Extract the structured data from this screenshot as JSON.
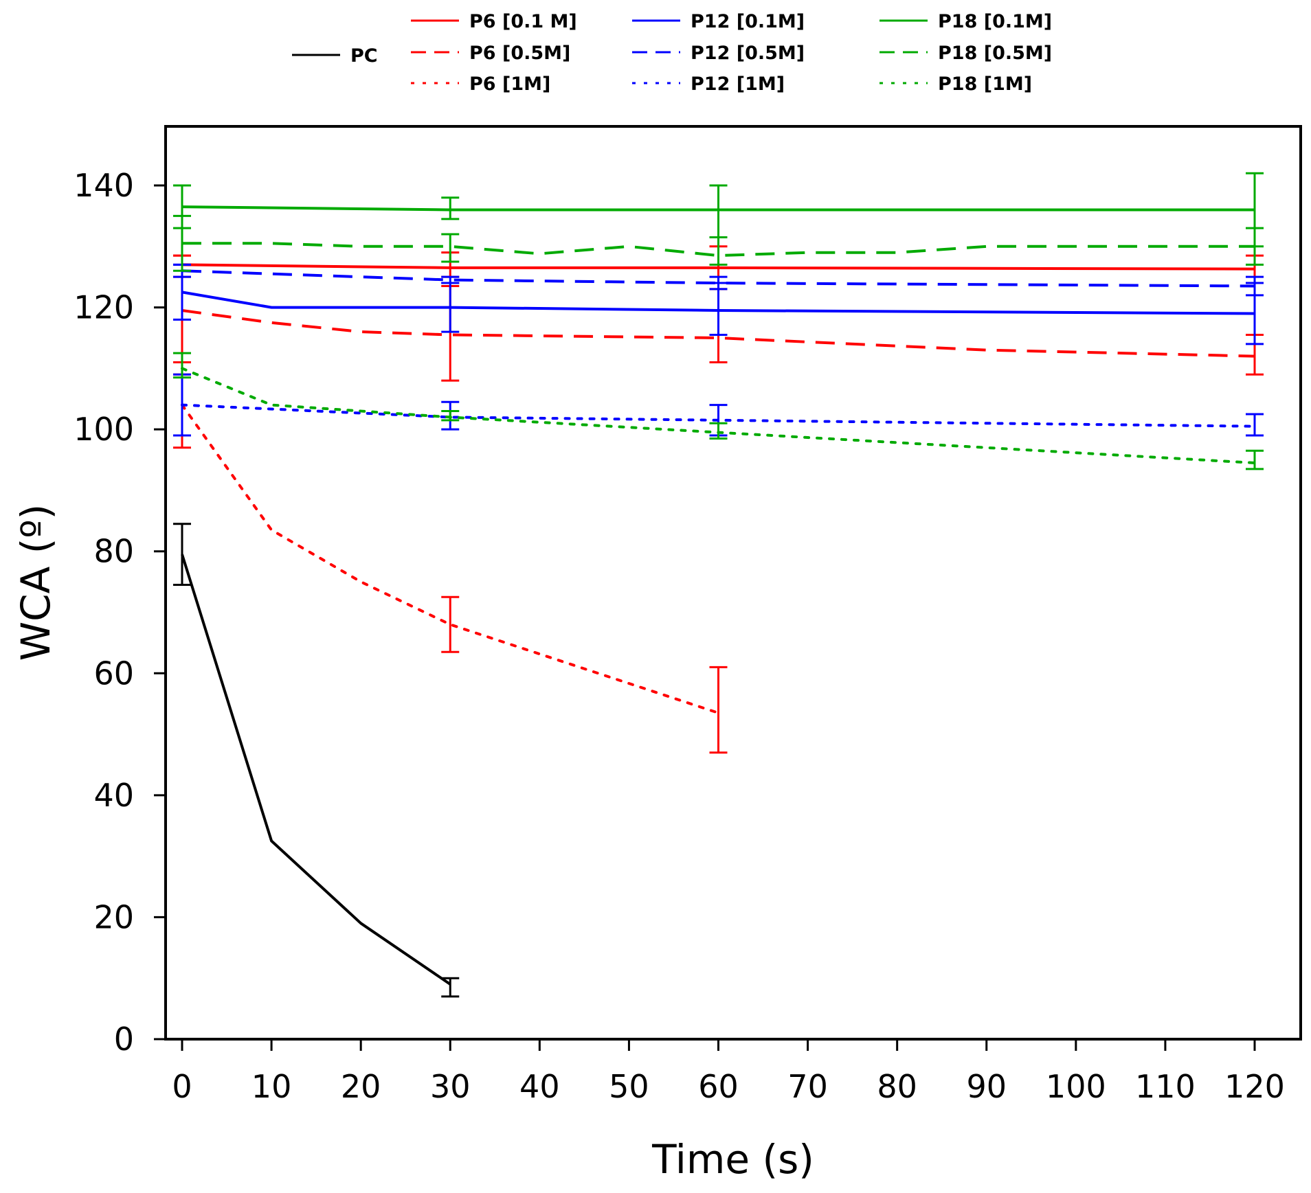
{
  "chart_data": {
    "type": "line",
    "title": "",
    "xlabel": "Time (s)",
    "ylabel": "WCA (º)",
    "xlim": [
      -2,
      125
    ],
    "ylim": [
      0,
      150
    ],
    "xticks": [
      0,
      10,
      20,
      30,
      40,
      50,
      60,
      70,
      80,
      90,
      100,
      110,
      120
    ],
    "yticks": [
      0,
      20,
      40,
      60,
      80,
      100,
      120,
      140
    ],
    "xtick_labels": [
      "0",
      "10",
      "20",
      "30",
      "40",
      "50",
      "60",
      "70",
      "80",
      "90",
      "100",
      "110",
      "120"
    ],
    "ytick_labels": [
      "0",
      "20",
      "40",
      "60",
      "80",
      "100",
      "120",
      "140"
    ],
    "grid": false,
    "legend_position": "top",
    "series": [
      {
        "name": "PC",
        "color": "#000000",
        "dash": "solid",
        "x": [
          0,
          10,
          20,
          30
        ],
        "y": [
          79.5,
          32.5,
          19,
          9
        ],
        "err_x": [
          0,
          30
        ],
        "err_lo": [
          74.5,
          7
        ],
        "err_hi": [
          84.5,
          10
        ]
      },
      {
        "name": "P6 [0.1 M]",
        "color": "#ff0000",
        "dash": "solid",
        "x": [
          0,
          30,
          60,
          120
        ],
        "y": [
          127,
          126.5,
          126.5,
          126.3
        ],
        "err_x": [
          0,
          30,
          60,
          120
        ],
        "err_lo": [
          125,
          125,
          123,
          124
        ],
        "err_hi": [
          128.5,
          129,
          130,
          128.5
        ]
      },
      {
        "name": "P6 [0.5M]",
        "color": "#ff0000",
        "dash": "dashed",
        "x": [
          0,
          10,
          20,
          30,
          60,
          90,
          120
        ],
        "y": [
          119.5,
          117.5,
          116,
          115.5,
          115,
          113,
          112
        ],
        "err_x": [
          0,
          30,
          60,
          120
        ],
        "err_lo": [
          109,
          108,
          111,
          109
        ],
        "err_hi": [
          128.5,
          123.5,
          119.5,
          115.5
        ]
      },
      {
        "name": "P6 [1M]",
        "color": "#ff0000",
        "dash": "dotted",
        "x": [
          0,
          10,
          20,
          30,
          60
        ],
        "y": [
          104,
          83.5,
          75,
          68,
          53.5
        ],
        "err_x": [
          0,
          30,
          60
        ],
        "err_lo": [
          97,
          63.5,
          47
        ],
        "err_hi": [
          111,
          72.5,
          61
        ]
      },
      {
        "name": "P12 [0.1M]",
        "color": "#0000ff",
        "dash": "solid",
        "x": [
          0,
          10,
          30,
          60,
          120
        ],
        "y": [
          122.5,
          120,
          120,
          119.5,
          119
        ],
        "err_x": [
          0,
          30,
          60,
          120
        ],
        "err_lo": [
          118,
          116,
          115.5,
          114
        ],
        "err_hi": [
          127,
          124,
          124,
          124
        ]
      },
      {
        "name": "P12 [0.5M]",
        "color": "#0000ff",
        "dash": "dashed",
        "x": [
          0,
          30,
          60,
          120
        ],
        "y": [
          126,
          124.5,
          124,
          123.5
        ],
        "err_x": [
          0,
          30,
          60,
          120
        ],
        "err_lo": [
          125,
          124,
          123,
          122
        ],
        "err_hi": [
          127,
          125,
          125,
          125
        ]
      },
      {
        "name": "P12 [1M]",
        "color": "#0000ff",
        "dash": "dotted",
        "x": [
          0,
          30,
          60,
          120
        ],
        "y": [
          104,
          102,
          101.5,
          100.5
        ],
        "err_x": [
          0,
          30,
          60,
          120
        ],
        "err_lo": [
          99,
          100,
          99,
          99
        ],
        "err_hi": [
          109,
          104.5,
          104,
          102.5
        ]
      },
      {
        "name": "P18 [0.1M]",
        "color": "#00aa00",
        "dash": "solid",
        "x": [
          0,
          30,
          60,
          120
        ],
        "y": [
          136.5,
          136,
          136,
          136
        ],
        "err_x": [
          0,
          30,
          60,
          120
        ],
        "err_lo": [
          133,
          134.5,
          131.5,
          130
        ],
        "err_hi": [
          140,
          138,
          140,
          142
        ]
      },
      {
        "name": "P18 [0.5M]",
        "color": "#00aa00",
        "dash": "dashed",
        "x": [
          0,
          10,
          20,
          30,
          40,
          50,
          60,
          70,
          80,
          90,
          100,
          110,
          120
        ],
        "y": [
          130.5,
          130.5,
          130,
          130,
          128.8,
          130,
          128.5,
          129,
          129,
          130,
          130,
          130,
          130
        ],
        "err_x": [
          0,
          30,
          60,
          120
        ],
        "err_lo": [
          126,
          127.5,
          127,
          127
        ],
        "err_hi": [
          135,
          132,
          131.5,
          133
        ]
      },
      {
        "name": "P18 [1M]",
        "color": "#00aa00",
        "dash": "dotted",
        "x": [
          0,
          10,
          30,
          60,
          90,
          120
        ],
        "y": [
          110,
          104,
          102,
          99.5,
          97,
          94.5
        ],
        "err_x": [
          0,
          30,
          60,
          120
        ],
        "err_lo": [
          108.5,
          101.5,
          98.5,
          93.5
        ],
        "err_hi": [
          112.5,
          103,
          101,
          96.5
        ]
      }
    ]
  }
}
